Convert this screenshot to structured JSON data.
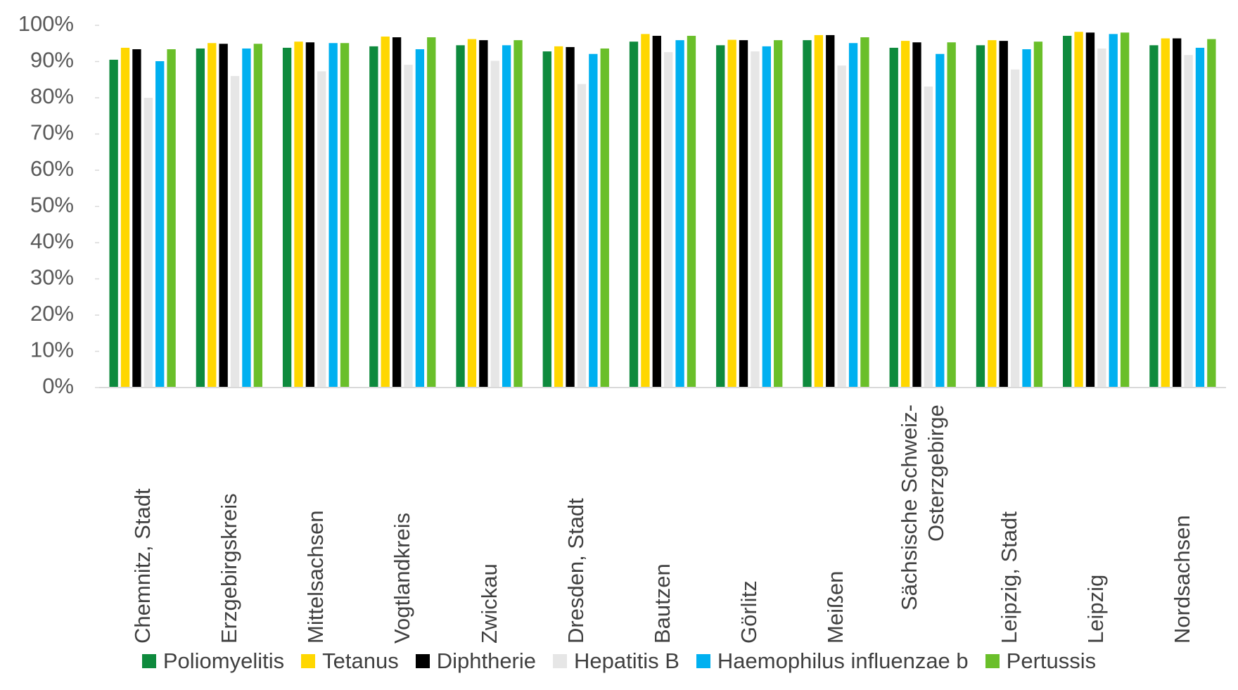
{
  "chart_data": {
    "type": "bar",
    "categories": [
      "Chemnitz, Stadt",
      "Erzgebirgskreis",
      "Mittelsachsen",
      "Vogtlandkreis",
      "Zwickau",
      "Dresden, Stadt",
      "Bautzen",
      "Görlitz",
      "Meißen",
      "Sächsische Schweiz-Osterzgebirge",
      "Leipzig, Stadt",
      "Leipzig",
      "Nordsachsen"
    ],
    "series": [
      {
        "name": "Poliomyelitis",
        "color": "#0e8a3d",
        "values": [
          90.5,
          93.6,
          93.8,
          94.2,
          94.5,
          92.8,
          95.5,
          94.5,
          95.9,
          93.8,
          94.5,
          97.1,
          94.5
        ]
      },
      {
        "name": "Tetanus",
        "color": "#ffd700",
        "values": [
          93.8,
          95.1,
          95.5,
          96.9,
          96.2,
          94.2,
          97.6,
          96.0,
          97.3,
          95.7,
          95.9,
          98.2,
          96.4
        ]
      },
      {
        "name": "Diphtherie",
        "color": "#000000",
        "values": [
          93.4,
          94.9,
          95.3,
          96.7,
          95.9,
          94.0,
          97.1,
          95.9,
          97.3,
          95.3,
          95.7,
          98.0,
          96.4
        ]
      },
      {
        "name": "Hepatitis B",
        "color": "#e6e6e6",
        "values": [
          80.0,
          86.0,
          87.3,
          89.1,
          90.2,
          83.8,
          92.6,
          92.8,
          88.9,
          83.1,
          87.8,
          93.6,
          91.8
        ]
      },
      {
        "name": "Haemophilus influenzae b",
        "color": "#00b0f0",
        "values": [
          90.1,
          93.6,
          95.1,
          93.4,
          94.5,
          92.1,
          95.9,
          94.2,
          95.1,
          92.1,
          93.4,
          97.6,
          93.8
        ]
      },
      {
        "name": "Pertussis",
        "color": "#6abf2a",
        "values": [
          93.4,
          94.9,
          95.1,
          96.7,
          95.9,
          93.6,
          97.1,
          95.9,
          96.7,
          95.3,
          95.5,
          98.0,
          96.2
        ]
      }
    ],
    "ylim": [
      0,
      100
    ],
    "yticks": [
      {
        "value": 0,
        "label": "0%"
      },
      {
        "value": 10,
        "label": "10%"
      },
      {
        "value": 20,
        "label": "20%"
      },
      {
        "value": 30,
        "label": "30%"
      },
      {
        "value": 40,
        "label": "40%"
      },
      {
        "value": 50,
        "label": "50%"
      },
      {
        "value": 60,
        "label": "60%"
      },
      {
        "value": 70,
        "label": "70%"
      },
      {
        "value": 80,
        "label": "80%"
      },
      {
        "value": 90,
        "label": "90%"
      },
      {
        "value": 100,
        "label": "100%"
      }
    ],
    "grid": false
  }
}
